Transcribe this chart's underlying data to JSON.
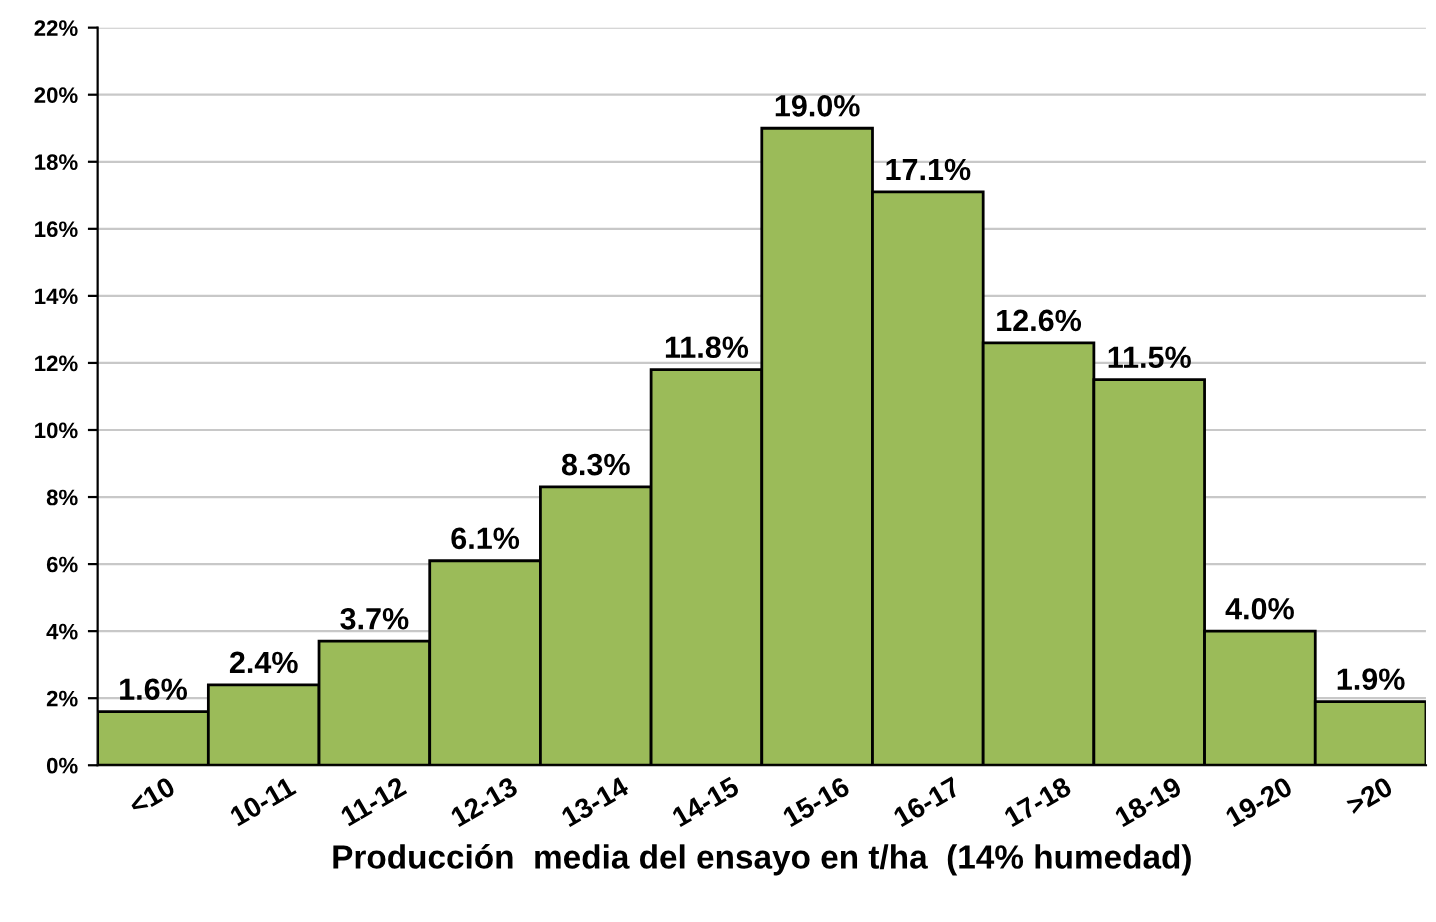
{
  "chart_data": {
    "type": "bar",
    "xlabel": "Producción  media del ensayo en t/ha  (14% humedad)",
    "categories": [
      "<10",
      "10-11",
      "11-12",
      "12-13",
      "13-14",
      "14-15",
      "15-16",
      "16-17",
      "17-18",
      "18-19",
      "19-20",
      ">20"
    ],
    "values": [
      1.6,
      2.4,
      3.7,
      6.1,
      8.3,
      11.8,
      19.0,
      17.1,
      12.6,
      11.5,
      4.0,
      1.9
    ],
    "value_labels": [
      "1.6%",
      "2.4%",
      "3.7%",
      "6.1%",
      "8.3%",
      "11.8%",
      "19.0%",
      "17.1%",
      "12.6%",
      "11.5%",
      "4.0%",
      "1.9%"
    ],
    "color": "#9bbb59",
    "ylim": [
      0,
      22
    ],
    "yticks": [
      {
        "value": 0,
        "label": "0%"
      },
      {
        "value": 2,
        "label": "2%"
      },
      {
        "value": 4,
        "label": "4%"
      },
      {
        "value": 6,
        "label": "6%"
      },
      {
        "value": 8,
        "label": "8%"
      },
      {
        "value": 10,
        "label": "10%"
      },
      {
        "value": 12,
        "label": "12%"
      },
      {
        "value": 14,
        "label": "14%"
      },
      {
        "value": 16,
        "label": "16%"
      },
      {
        "value": 18,
        "label": "18%"
      },
      {
        "value": 20,
        "label": "20%"
      },
      {
        "value": 22,
        "label": "22%"
      }
    ],
    "grid": "y"
  }
}
